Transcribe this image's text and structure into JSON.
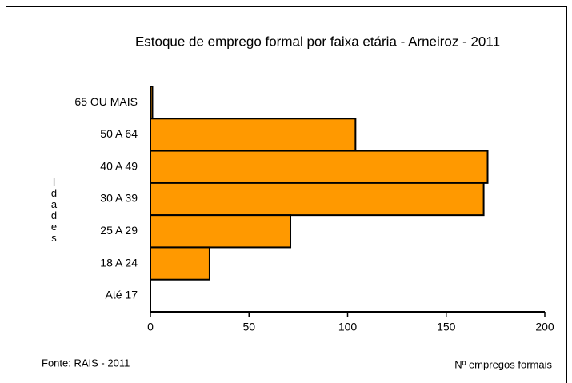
{
  "chart_data": {
    "type": "barh",
    "title": "Estoque de emprego formal por faixa etária - Arneiroz - 2011",
    "categories": [
      "65 OU MAIS",
      "50 A 64",
      "40 A 49",
      "30 A 39",
      "25 A 29",
      "18 A 24",
      "Até 17"
    ],
    "values": [
      1,
      104,
      171,
      169,
      71,
      30,
      0
    ],
    "color": "#ff9900",
    "xlim": [
      0,
      200
    ],
    "xticks": [
      0,
      50,
      100,
      150,
      200
    ],
    "xlabel": "Nº empregos formais",
    "ylabel": "Idades",
    "source": "Fonte: RAIS - 2011"
  }
}
